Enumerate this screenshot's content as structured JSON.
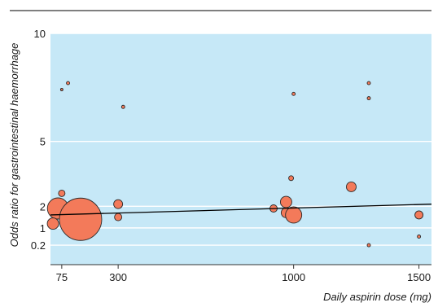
{
  "chart_data": {
    "type": "scatter",
    "title": "",
    "xlabel": "Daily aspirin dose (mg)",
    "ylabel": "Odds ratio for gastrointestinal haemorrhage",
    "x_ticks": [
      75,
      300,
      1000,
      1500
    ],
    "y_ticks": [
      0.2,
      1,
      2,
      5,
      10
    ],
    "xlim": [
      30,
      1550
    ],
    "ylim": [
      -0.7,
      10
    ],
    "grid": true,
    "points": [
      {
        "x": 75,
        "y": 7.4,
        "size": 1.5
      },
      {
        "x": 100,
        "y": 7.7,
        "size": 2
      },
      {
        "x": 320,
        "y": 6.6,
        "size": 2
      },
      {
        "x": 1000,
        "y": 7.2,
        "size": 2
      },
      {
        "x": 1300,
        "y": 7.7,
        "size": 2
      },
      {
        "x": 1300,
        "y": 7.0,
        "size": 2
      },
      {
        "x": 75,
        "y": 2.6,
        "size": 4
      },
      {
        "x": 75,
        "y": 2.0,
        "size": 5
      },
      {
        "x": 60,
        "y": 1.9,
        "size": 13
      },
      {
        "x": 40,
        "y": 1.2,
        "size": 7
      },
      {
        "x": 150,
        "y": 1.4,
        "size": 26
      },
      {
        "x": 300,
        "y": 2.1,
        "size": 5.5
      },
      {
        "x": 300,
        "y": 1.5,
        "size": 4.5
      },
      {
        "x": 920,
        "y": 1.9,
        "size": 4.5
      },
      {
        "x": 990,
        "y": 3.3,
        "size": 3
      },
      {
        "x": 970,
        "y": 2.2,
        "size": 7
      },
      {
        "x": 970,
        "y": 1.7,
        "size": 6
      },
      {
        "x": 1000,
        "y": 1.6,
        "size": 10
      },
      {
        "x": 1230,
        "y": 2.9,
        "size": 6
      },
      {
        "x": 1300,
        "y": 0.2,
        "size": 2
      },
      {
        "x": 1500,
        "y": 1.6,
        "size": 5
      },
      {
        "x": 1500,
        "y": 0.6,
        "size": 2
      }
    ],
    "regression": {
      "x": [
        30,
        1550
      ],
      "y": [
        1.6,
        2.1
      ]
    },
    "colors": {
      "plot_background": "#c6e8f7",
      "marker_fill": "#f37a5a",
      "marker_stroke": "#2a2a2a",
      "grid": "#ffffff",
      "line": "#000000"
    }
  }
}
